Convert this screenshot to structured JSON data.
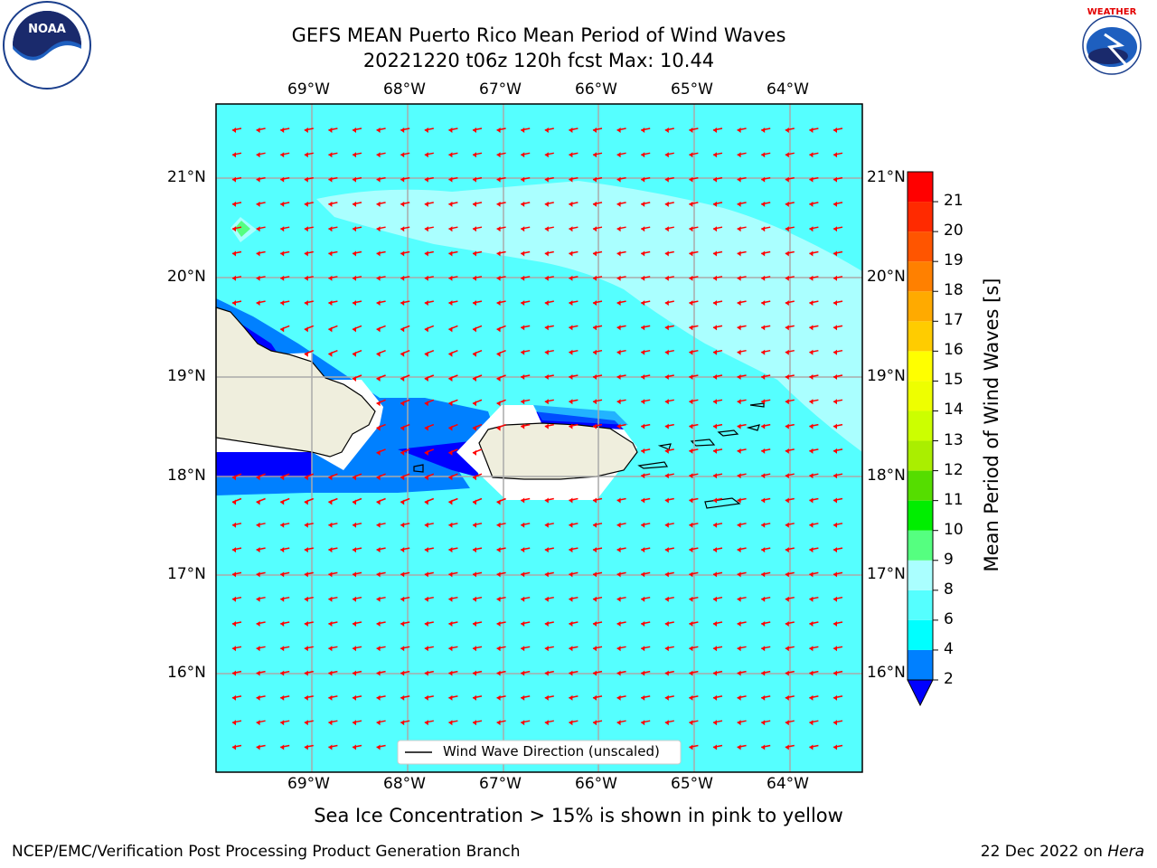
{
  "title": {
    "line1": "GEFS MEAN Puerto Rico Mean Period of Wind Waves",
    "line2": "20221220 t06z 120h fcst   Max: 10.44"
  },
  "logos": {
    "left": "noara-logo",
    "right": "nws-logo",
    "nws_text": "NATIONAL WEATHER SERVICE"
  },
  "map": {
    "lon_labels": [
      "69°W",
      "68°W",
      "67°W",
      "66°W",
      "65°W",
      "64°W"
    ],
    "lat_labels": [
      "21°N",
      "20°N",
      "19°N",
      "18°N",
      "17°N",
      "16°N"
    ],
    "legend_label": "Wind Wave Direction (unscaled)",
    "ocean_color": "#55ffff",
    "light_color": "#aaffff",
    "land_color": "#efeedd",
    "arrow_color": "#ff0000"
  },
  "colorbar": {
    "title": "Mean Period of Wind Waves [s]",
    "ticks": [
      "2",
      "4",
      "6",
      "8",
      "9",
      "10",
      "11",
      "12",
      "13",
      "14",
      "15",
      "16",
      "17",
      "18",
      "19",
      "20",
      "21"
    ],
    "colors": [
      "#0000ff",
      "#0080ff",
      "#00ffff",
      "#55ffff",
      "#aaffff",
      "#55ff80",
      "#00ee00",
      "#55dd00",
      "#aaee00",
      "#ccff00",
      "#eeff00",
      "#ffff00",
      "#ffcc00",
      "#ffaa00",
      "#ff8000",
      "#ff5500",
      "#ff2a00",
      "#ff0000"
    ]
  },
  "caption": "Sea Ice Concentration > 15% is shown in pink to yellow",
  "footer": {
    "left": "NCEP/EMC/Verification Post Processing Product Generation Branch",
    "right_prefix": "22 Dec 2022 on ",
    "right_host": "Hera"
  }
}
